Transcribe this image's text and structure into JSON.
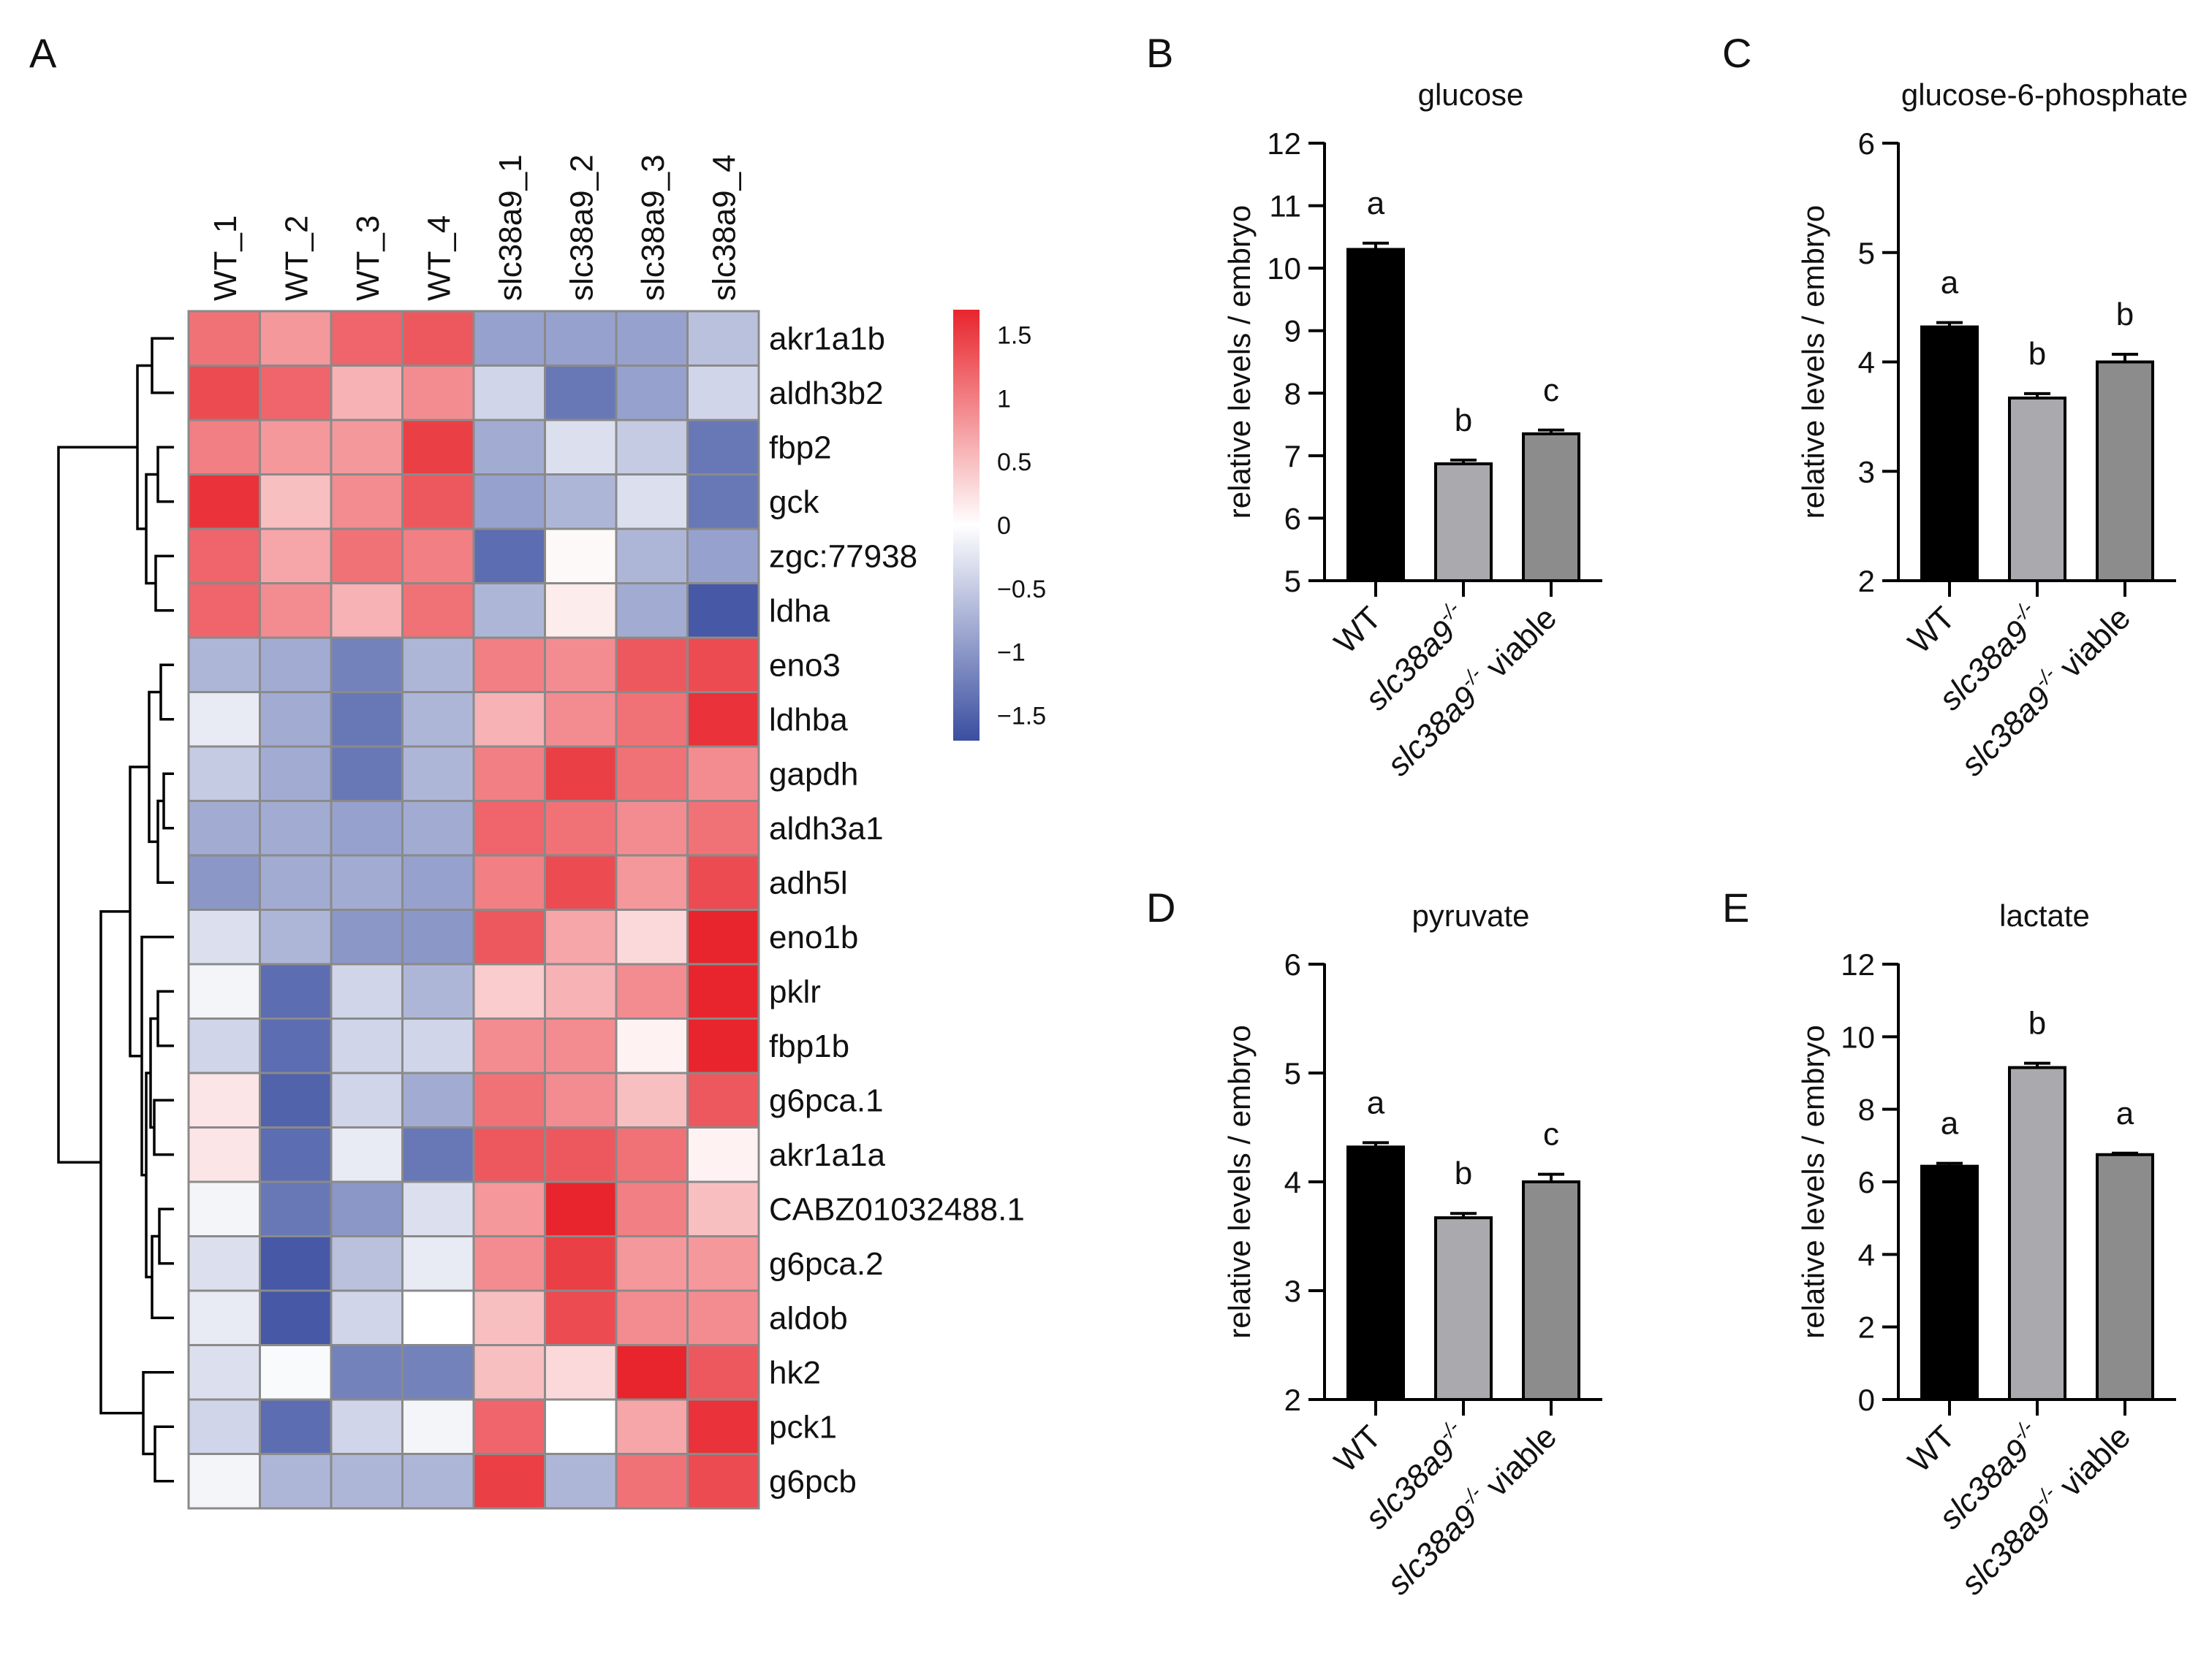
{
  "panel_labels": {
    "a": "A",
    "b": "B",
    "c": "C",
    "d": "D",
    "e": "E"
  },
  "chart_data": [
    {
      "panel": "A",
      "type": "heatmap",
      "title": "",
      "columns": [
        "WT_1",
        "WT_2",
        "WT_3",
        "WT_4",
        "slc38a9_1",
        "slc38a9_2",
        "slc38a9_3",
        "slc38a9_4"
      ],
      "rows": [
        "akr1a1b",
        "aldh3b2",
        "fbp2",
        "gck",
        "zgc:77938",
        "ldha",
        "eno3",
        "ldhba",
        "gapdh",
        "aldh3a1",
        "adh5l",
        "eno1b",
        "pklr",
        "fbp1b",
        "g6pca.1",
        "akr1a1a",
        "CABZ01032488.1",
        "g6pca.2",
        "aldob",
        "hk2",
        "pck1",
        "g6pcb"
      ],
      "values": [
        [
          1.1,
          0.8,
          1.2,
          1.3,
          -0.9,
          -0.9,
          -0.9,
          -0.6
        ],
        [
          1.4,
          1.2,
          0.6,
          0.9,
          -0.4,
          -1.3,
          -0.9,
          -0.4
        ],
        [
          1.0,
          0.8,
          0.8,
          1.5,
          -0.8,
          -0.3,
          -0.5,
          -1.3
        ],
        [
          1.6,
          0.5,
          0.9,
          1.3,
          -0.9,
          -0.7,
          -0.3,
          -1.3
        ],
        [
          1.2,
          0.7,
          1.1,
          1.0,
          -1.4,
          0.05,
          -0.7,
          -0.9
        ],
        [
          1.2,
          0.9,
          0.6,
          1.1,
          -0.7,
          0.15,
          -0.8,
          -1.6
        ],
        [
          -0.7,
          -0.8,
          -1.2,
          -0.7,
          1.0,
          0.9,
          1.3,
          1.4
        ],
        [
          -0.2,
          -0.8,
          -1.3,
          -0.7,
          0.6,
          0.9,
          1.1,
          1.6
        ],
        [
          -0.5,
          -0.8,
          -1.3,
          -0.7,
          1.0,
          1.5,
          1.1,
          0.9
        ],
        [
          -0.8,
          -0.8,
          -0.9,
          -0.8,
          1.2,
          1.1,
          0.9,
          1.1
        ],
        [
          -1.0,
          -0.8,
          -0.8,
          -0.9,
          1.0,
          1.4,
          0.8,
          1.4
        ],
        [
          -0.3,
          -0.7,
          -1.0,
          -1.0,
          1.3,
          0.7,
          0.3,
          1.7
        ],
        [
          -0.1,
          -1.4,
          -0.4,
          -0.7,
          0.4,
          0.6,
          0.9,
          1.8
        ],
        [
          -0.4,
          -1.4,
          -0.4,
          -0.4,
          0.9,
          0.9,
          0.1,
          1.7
        ],
        [
          0.2,
          -1.5,
          -0.4,
          -0.8,
          1.1,
          0.9,
          0.5,
          1.3
        ],
        [
          0.2,
          -1.4,
          -0.2,
          -1.3,
          1.3,
          1.3,
          1.1,
          0.1
        ],
        [
          -0.1,
          -1.3,
          -1.0,
          -0.3,
          0.8,
          1.8,
          1.0,
          0.5
        ],
        [
          -0.3,
          -1.6,
          -0.6,
          -0.2,
          0.9,
          1.5,
          0.8,
          0.8
        ],
        [
          -0.2,
          -1.6,
          -0.4,
          0.0,
          0.5,
          1.4,
          0.9,
          0.9
        ],
        [
          -0.3,
          -0.05,
          -1.2,
          -1.2,
          0.5,
          0.3,
          1.7,
          1.3
        ],
        [
          -0.4,
          -1.4,
          -0.4,
          -0.1,
          1.2,
          0.0,
          0.7,
          1.6
        ],
        [
          -0.1,
          -0.7,
          -0.7,
          -0.7,
          1.5,
          -0.7,
          1.1,
          1.4
        ]
      ],
      "colorbar": {
        "ticks": [
          1.5,
          1,
          0.5,
          0,
          -0.5,
          -1,
          -1.5
        ],
        "tick_labels": [
          "1.5",
          "1",
          "0.5",
          "0",
          "−0.5",
          "−1",
          "−1.5"
        ],
        "range": [
          -1.7,
          1.7
        ],
        "colors": {
          "low": "#3a4ea0",
          "mid": "#ffffff",
          "high": "#e8252d"
        }
      },
      "dendrogram": "rows"
    },
    {
      "panel": "B",
      "type": "bar",
      "title": "glucose",
      "ylabel": "relative levels / embryo",
      "categories": [
        "WT",
        "slc38a9",
        "slc38a9"
      ],
      "category_suffix": [
        "",
        "",
        " viable"
      ],
      "values": [
        10.3,
        6.87,
        7.35
      ],
      "errors": [
        0.1,
        0.06,
        0.06
      ],
      "letters": [
        "a",
        "b",
        "c"
      ],
      "ylim": [
        5,
        12
      ],
      "yticks": [
        5,
        6,
        7,
        8,
        9,
        10,
        11,
        12
      ]
    },
    {
      "panel": "C",
      "type": "bar",
      "title": "glucose-6-phosphate",
      "ylabel": "relative levels / embryo",
      "categories": [
        "WT",
        "slc38a9",
        "slc38a9"
      ],
      "category_suffix": [
        "",
        "",
        " viable"
      ],
      "values": [
        4.32,
        3.67,
        4.0
      ],
      "errors": [
        0.04,
        0.04,
        0.07
      ],
      "letters": [
        "a",
        "b",
        "b"
      ],
      "ylim": [
        2,
        6
      ],
      "yticks": [
        2,
        3,
        4,
        5,
        6
      ]
    },
    {
      "panel": "D",
      "type": "bar",
      "title": "pyruvate",
      "ylabel": "relative levels / embryo",
      "categories": [
        "WT",
        "slc38a9",
        "slc38a9"
      ],
      "category_suffix": [
        "",
        "",
        " viable"
      ],
      "values": [
        4.32,
        3.67,
        4.0
      ],
      "errors": [
        0.04,
        0.04,
        0.07
      ],
      "letters": [
        "a",
        "b",
        "c"
      ],
      "ylim": [
        2,
        6
      ],
      "yticks": [
        2,
        3,
        4,
        5,
        6
      ]
    },
    {
      "panel": "E",
      "type": "bar",
      "title": "lactate",
      "ylabel": "relative levels / embryo",
      "categories": [
        "WT",
        "slc38a9",
        "slc38a9"
      ],
      "category_suffix": [
        "",
        "",
        " viable"
      ],
      "values": [
        6.43,
        9.15,
        6.75
      ],
      "errors": [
        0.08,
        0.12,
        0.04
      ],
      "letters": [
        "a",
        "b",
        "a"
      ],
      "ylim": [
        0,
        12
      ],
      "yticks": [
        0,
        2,
        4,
        6,
        8,
        10,
        12
      ]
    }
  ],
  "genotype_superscript": "-/-",
  "bar_colors": [
    "#000000",
    "#a9a9ae",
    "#8c8c8c"
  ]
}
